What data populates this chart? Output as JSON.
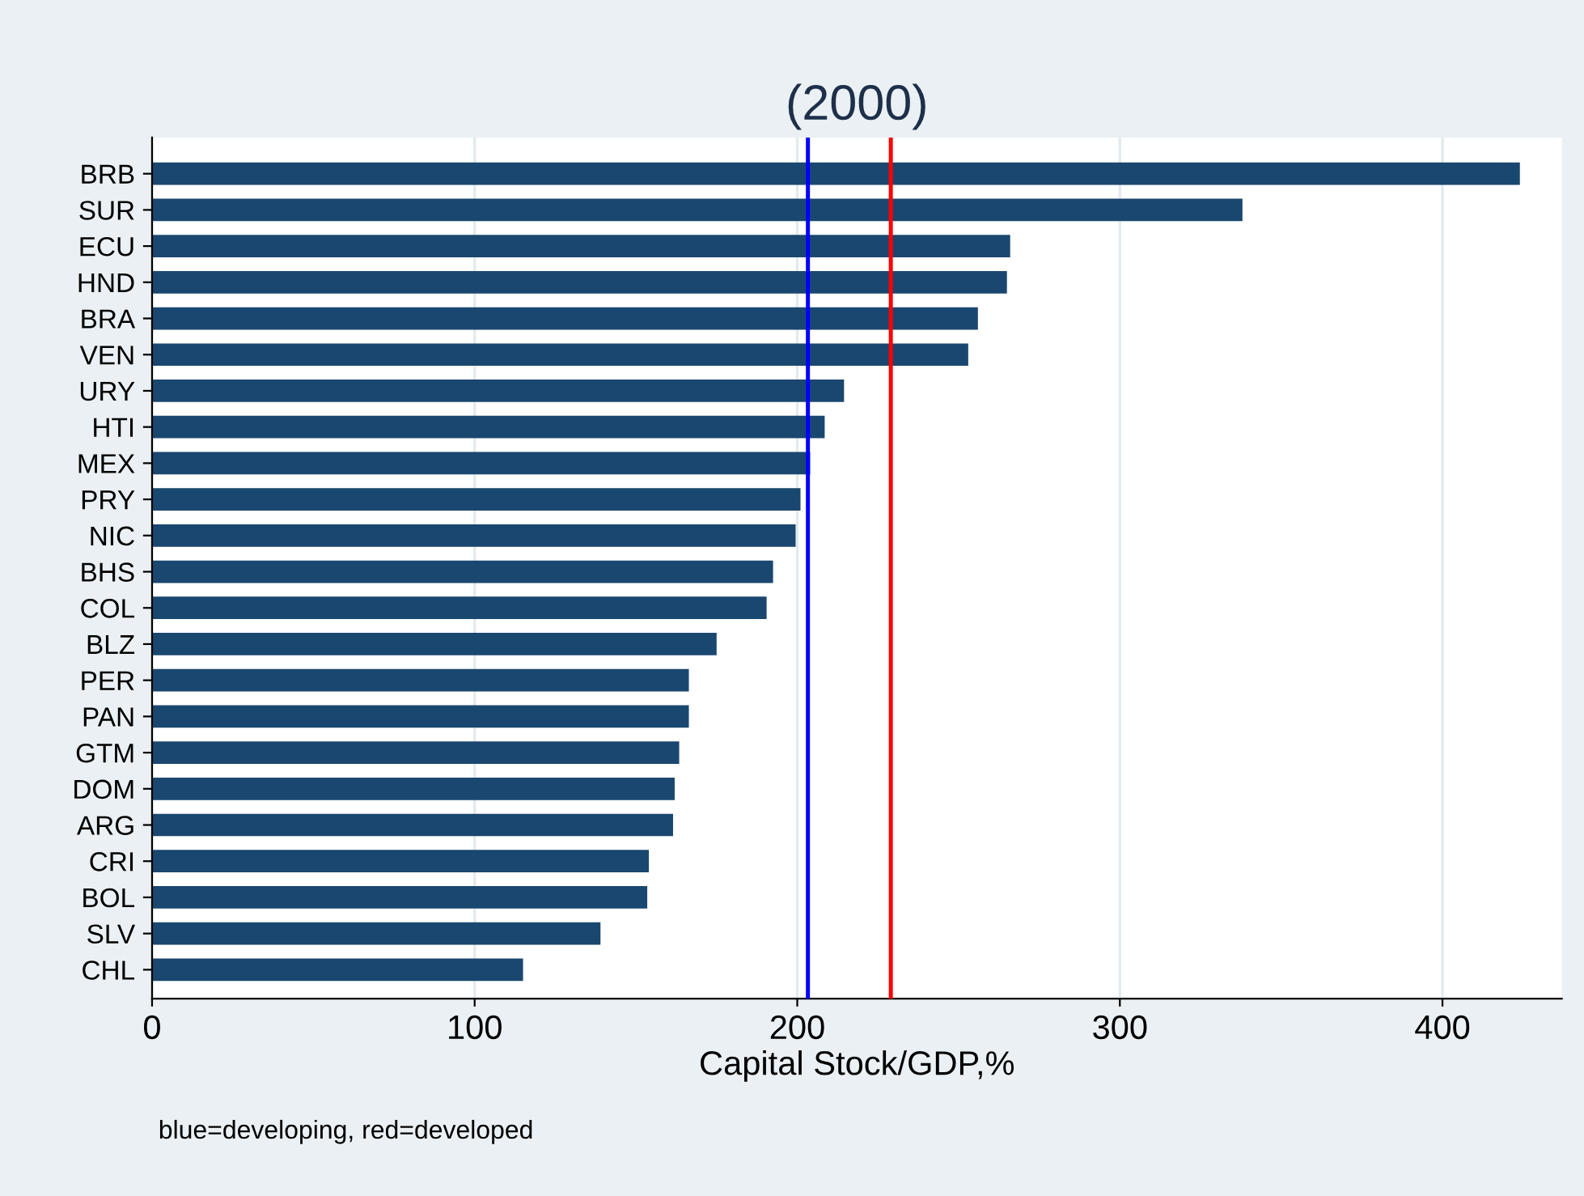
{
  "chart_data": {
    "type": "bar",
    "orientation": "horizontal",
    "title": "(2000)",
    "xlabel": "Capital Stock/GDP,%",
    "categories": [
      "BRB",
      "SUR",
      "ECU",
      "HND",
      "BRA",
      "VEN",
      "URY",
      "HTI",
      "MEX",
      "PRY",
      "NIC",
      "BHS",
      "COL",
      "BLZ",
      "PER",
      "PAN",
      "GTM",
      "DOM",
      "ARG",
      "CRI",
      "BOL",
      "SLV",
      "CHL"
    ],
    "values": [
      424,
      338,
      266,
      265,
      256,
      253,
      214.5,
      208.5,
      204,
      201,
      199.5,
      192.5,
      190.5,
      175,
      166.4,
      166.4,
      163.4,
      162,
      161.5,
      154,
      153.5,
      139,
      115
    ],
    "color": "#1a476f",
    "xlim": [
      0,
      437
    ],
    "xticks": [
      0,
      100,
      200,
      300,
      400
    ],
    "grid": "x",
    "ref_lines": [
      {
        "axis": "x",
        "value": 203.3,
        "color": "#0000ff"
      },
      {
        "axis": "x",
        "value": 229,
        "color": "#ff0000"
      }
    ],
    "annotations": [
      "blue=developing, red=developed"
    ]
  }
}
